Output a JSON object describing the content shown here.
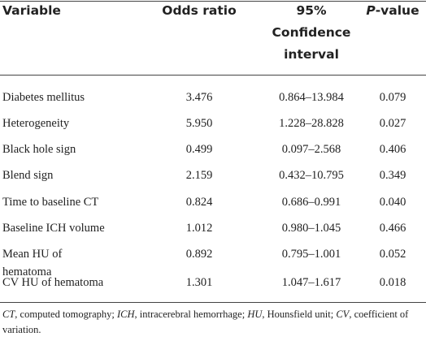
{
  "table": {
    "columns": [
      "Variable",
      "Odds ratio",
      "95% Confidence interval",
      {
        "italic": "P",
        "text": "-value"
      }
    ],
    "rows": [
      [
        "Diabetes mellitus",
        "3.476",
        "0.864–13.984",
        "0.079"
      ],
      [
        "Heterogeneity",
        "5.950",
        "1.228–28.828",
        "0.027"
      ],
      [
        "Black hole sign",
        "0.499",
        "0.097–2.568",
        "0.406"
      ],
      [
        "Blend sign",
        "2.159",
        "0.432–10.795",
        "0.349"
      ],
      [
        "Time to baseline CT",
        "0.824",
        "0.686–0.991",
        "0.040"
      ],
      [
        "Baseline ICH volume",
        "1.012",
        "0.980–1.045",
        "0.466"
      ],
      [
        "Mean HU of hematoma",
        "0.892",
        "0.795–1.001",
        "0.052"
      ],
      [
        "CV HU of hematoma",
        "1.301",
        "1.047–1.617",
        "0.018"
      ]
    ]
  },
  "footnote": [
    {
      "abbr": "CT",
      "text": ", computed tomography; "
    },
    {
      "abbr": "ICH",
      "text": ", intracerebral hemorrhage; "
    },
    {
      "abbr": "HU",
      "text": ", Hounsfield unit; "
    },
    {
      "abbr": "CV",
      "text": ", coefficient of variation."
    }
  ]
}
